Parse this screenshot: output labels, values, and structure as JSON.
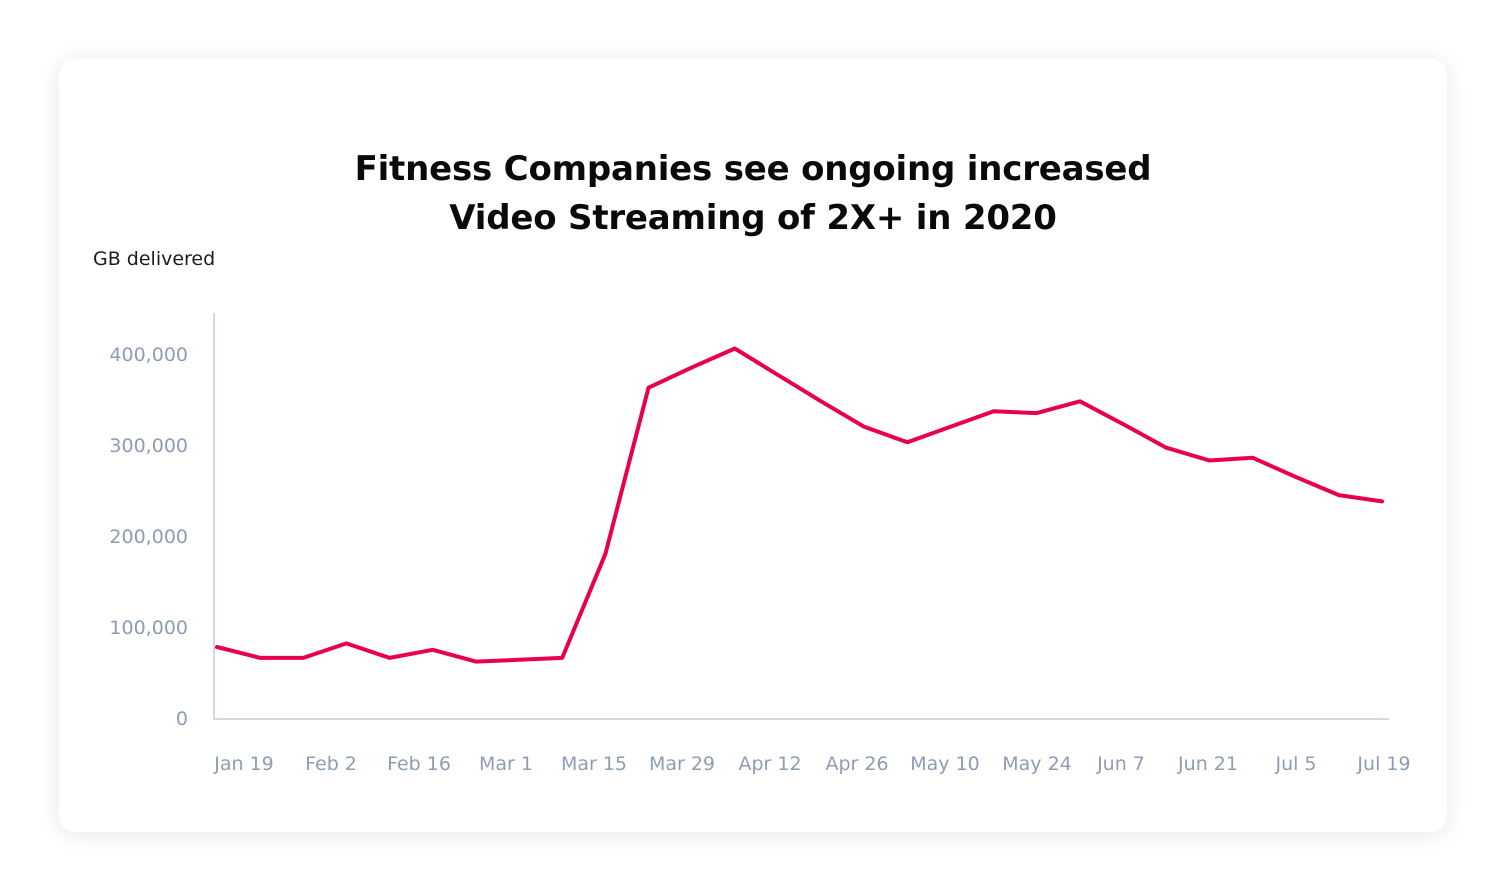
{
  "chart_data": {
    "type": "line",
    "title": [
      "Fitness Companies see ongoing increased",
      "Video Streaming of 2X+ in 2020"
    ],
    "ylabel": "GB delivered",
    "xlabel": "",
    "ylim": [
      0,
      450000
    ],
    "yticks": [
      0,
      100000,
      200000,
      300000,
      400000
    ],
    "ytick_labels": [
      "0",
      "100,000",
      "200,000",
      "300,000",
      "400,000"
    ],
    "xtick_labels": [
      "Jan 19",
      "Feb 2",
      "Feb 16",
      "Mar 1",
      "Mar 15",
      "Mar 29",
      "Apr 12",
      "Apr 26",
      "May 10",
      "May 24",
      "Jun 7",
      "Jun 21",
      "Jul 5",
      "Jul 19"
    ],
    "grid": false,
    "legend": "none",
    "line_color": "#e8004c",
    "series": [
      {
        "values": [
          78000,
          66000,
          66000,
          82000,
          66000,
          75000,
          62000,
          64000,
          66000,
          180000,
          363000,
          385000,
          406000,
          377000,
          348000,
          320000,
          303000,
          320000,
          337000,
          335000,
          348000,
          323000,
          297000,
          283000,
          286000,
          265000,
          245000,
          238000
        ]
      }
    ]
  }
}
